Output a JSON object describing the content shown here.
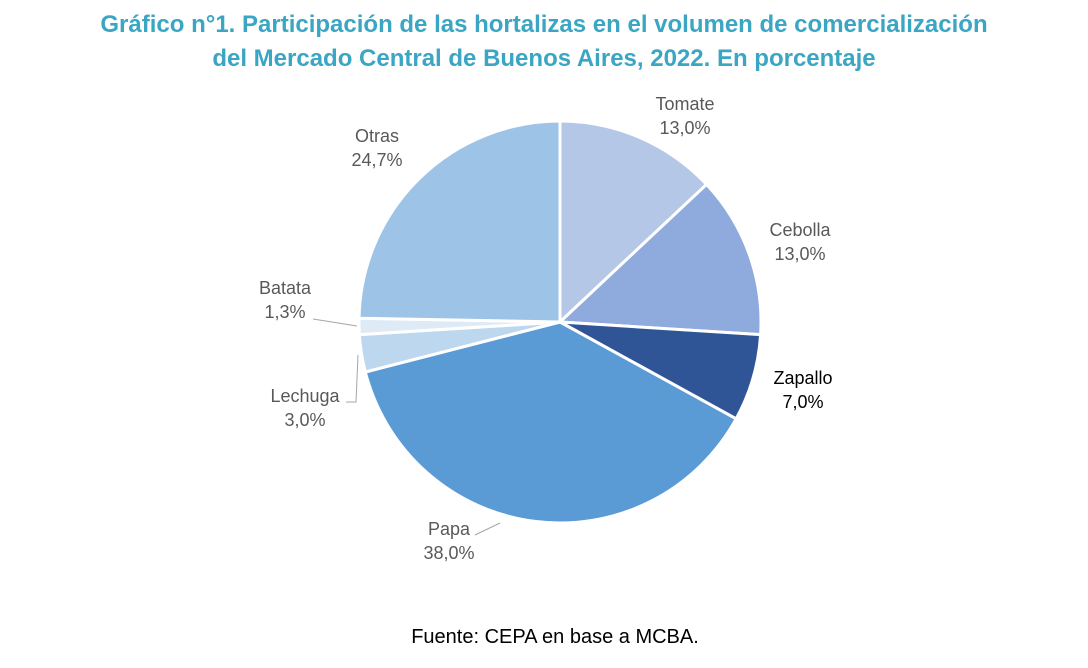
{
  "title": {
    "line1": "Gráfico n°1. Participación de las hortalizas en el volumen de comercialización",
    "line2": "del Mercado Central de Buenos Aires, 2022. En porcentaje"
  },
  "source": "Fuente: CEPA en base a MCBA.",
  "chart_data": {
    "type": "pie",
    "title": "Gráfico n°1. Participación de las hortalizas en el volumen de comercialización del Mercado Central de Buenos Aires, 2022. En porcentaje",
    "slices": [
      {
        "name": "Tomate",
        "value": 13.0,
        "label": "13,0%",
        "color": "#b4c7e7"
      },
      {
        "name": "Cebolla",
        "value": 13.0,
        "label": "13,0%",
        "color": "#8faadc"
      },
      {
        "name": "Zapallo",
        "value": 7.0,
        "label": "7,0%",
        "color": "#2f5597"
      },
      {
        "name": "Papa",
        "value": 38.0,
        "label": "38,0%",
        "color": "#5b9bd5"
      },
      {
        "name": "Lechuga",
        "value": 3.0,
        "label": "3,0%",
        "color": "#bdd7ee"
      },
      {
        "name": "Batata",
        "value": 1.3,
        "label": "1,3%",
        "color": "#deebf7"
      },
      {
        "name": "Otras",
        "value": 24.7,
        "label": "24,7%",
        "color": "#9dc3e6"
      }
    ]
  }
}
